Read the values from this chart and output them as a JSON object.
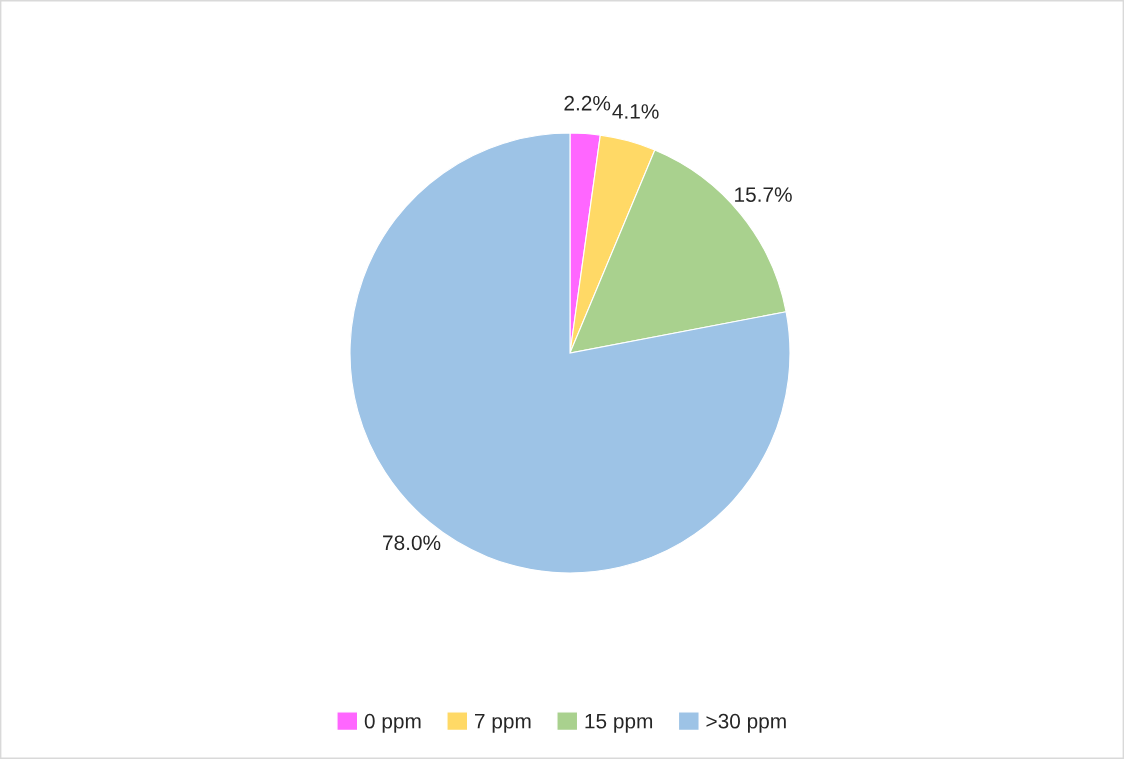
{
  "chart_data": {
    "type": "pie",
    "categories": [
      "0 ppm",
      "7 ppm",
      "15 ppm",
      ">30 ppm"
    ],
    "values": [
      2.2,
      4.1,
      15.7,
      78.0
    ],
    "colors": [
      "#ff66ff",
      "#ffd966",
      "#a9d18e",
      "#9dc3e6"
    ],
    "value_labels": [
      "2.2%",
      "4.1%",
      "15.7%",
      "78.0%"
    ],
    "legend": "bottom"
  }
}
